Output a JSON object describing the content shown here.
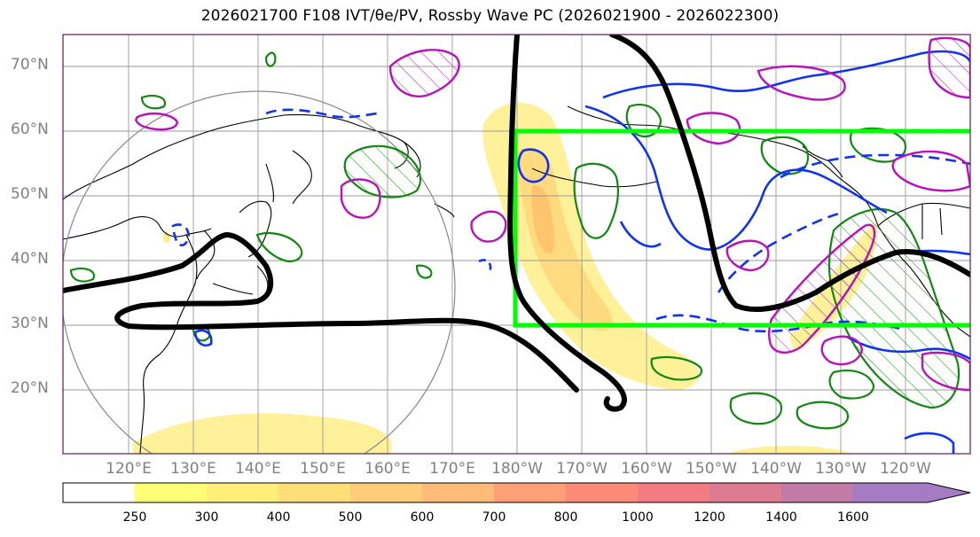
{
  "title": "2026021700 F108 IVT/θe/PV, Rossby Wave PC (2026021900 - 2026022300)",
  "map": {
    "lat_labels": [
      "70°N",
      "60°N",
      "50°N",
      "40°N",
      "30°N",
      "20°N"
    ],
    "lon_labels": [
      "120°E",
      "130°E",
      "140°E",
      "150°E",
      "160°E",
      "170°E",
      "180°W",
      "170°W",
      "160°W",
      "150°W",
      "140°W",
      "130°W",
      "120°W"
    ],
    "box_color": "#00ff00",
    "ivt_color_scale": [
      "#ffff66",
      "#ffe566",
      "#ffd166",
      "#ffc066",
      "#ffb066",
      "#ff9a6e",
      "#ff8575",
      "#f27580",
      "#dd7a90",
      "#c07aa8",
      "#a87ac0"
    ]
  },
  "colorbar": {
    "ticks": [
      "250",
      "300",
      "400",
      "500",
      "600",
      "700",
      "800",
      "1000",
      "1200",
      "1400",
      "1600"
    ],
    "colors": [
      "#ffff77",
      "#ffee77",
      "#ffdd77",
      "#ffcc77",
      "#ffbb77",
      "#ff9f77",
      "#ff8a77",
      "#f37b82",
      "#dd7b93",
      "#c27aa7",
      "#a57bc4"
    ]
  }
}
